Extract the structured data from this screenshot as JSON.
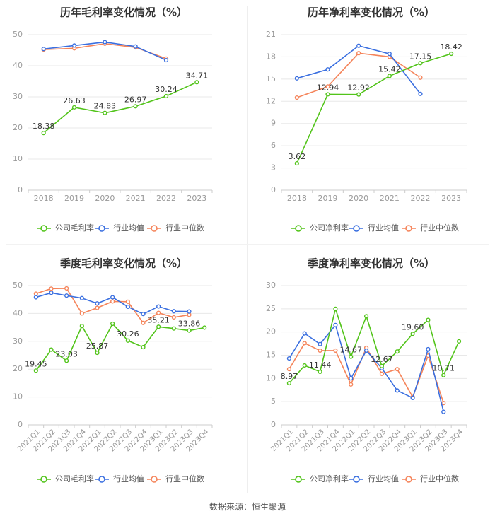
{
  "footer": {
    "source": "数据来源：恒生聚源"
  },
  "colors": {
    "company": "#52c41a",
    "avg": "#3a6fe0",
    "median": "#f5845a",
    "grid": "#e8e8e8",
    "axis": "#999999"
  },
  "chart_data": [
    {
      "id": "annual-gross",
      "type": "line",
      "title": "历年毛利率变化情况（%）",
      "categories": [
        "2018",
        "2019",
        "2020",
        "2021",
        "2022",
        "2023"
      ],
      "ylim": [
        0,
        50
      ],
      "yticks": [
        0,
        10,
        20,
        30,
        40,
        50
      ],
      "series": [
        {
          "name": "公司毛利率",
          "key": "company",
          "values": [
            18.38,
            26.63,
            24.83,
            26.97,
            30.24,
            34.71
          ],
          "labels": [
            "18.38",
            "26.63",
            "24.83",
            "26.97",
            "30.24",
            "34.71"
          ]
        },
        {
          "name": "行业均值",
          "key": "avg",
          "values": [
            45.4,
            46.5,
            47.6,
            46.2,
            41.8,
            null
          ]
        },
        {
          "name": "行业中位数",
          "key": "median",
          "values": [
            45.2,
            45.6,
            47.1,
            45.9,
            42.3,
            null
          ]
        }
      ]
    },
    {
      "id": "annual-net",
      "type": "line",
      "title": "历年净利率变化情况（%）",
      "categories": [
        "2018",
        "2019",
        "2020",
        "2021",
        "2022",
        "2023"
      ],
      "ylim": [
        0,
        21
      ],
      "yticks": [
        0,
        3,
        6,
        9,
        12,
        15,
        18,
        21
      ],
      "series": [
        {
          "name": "公司净利率",
          "key": "company",
          "values": [
            3.62,
            12.94,
            12.92,
            15.42,
            17.15,
            18.42
          ],
          "labels": [
            "3.62",
            "12.94",
            "12.92",
            "15.42",
            "17.15",
            "18.42"
          ]
        },
        {
          "name": "行业均值",
          "key": "avg",
          "values": [
            15.1,
            16.3,
            19.5,
            18.4,
            13.0,
            null
          ]
        },
        {
          "name": "行业中位数",
          "key": "median",
          "values": [
            12.5,
            14.0,
            18.5,
            18.0,
            15.2,
            null
          ]
        }
      ]
    },
    {
      "id": "quarterly-gross",
      "type": "line",
      "title": "季度毛利率变化情况（%）",
      "categories": [
        "2021Q1",
        "2021Q2",
        "2021Q3",
        "2021Q4",
        "2022Q1",
        "2022Q2",
        "2022Q3",
        "2022Q4",
        "2023Q1",
        "2023Q2",
        "2023Q3",
        "2023Q4"
      ],
      "ylim": [
        0,
        50
      ],
      "yticks": [
        0,
        10,
        20,
        30,
        40,
        50
      ],
      "series": [
        {
          "name": "公司毛利率",
          "key": "company",
          "values": [
            19.45,
            27.0,
            23.03,
            35.5,
            25.87,
            36.3,
            30.26,
            27.9,
            35.21,
            34.6,
            33.86,
            34.9
          ],
          "labels": [
            "19.45",
            "",
            "23.03",
            "",
            "25.87",
            "",
            "30.26",
            "",
            "35.21",
            "",
            "33.86",
            ""
          ]
        },
        {
          "name": "行业均值",
          "key": "avg",
          "values": [
            45.8,
            47.4,
            46.4,
            45.5,
            43.6,
            45.8,
            42.4,
            39.8,
            42.5,
            40.8,
            40.7,
            null
          ]
        },
        {
          "name": "行业中位数",
          "key": "median",
          "values": [
            47.1,
            48.9,
            49.0,
            40.0,
            42.0,
            44.3,
            44.2,
            36.6,
            40.2,
            38.6,
            39.5,
            null
          ]
        }
      ]
    },
    {
      "id": "quarterly-net",
      "type": "line",
      "title": "季度净利率变化情况（%）",
      "categories": [
        "2021Q1",
        "2021Q2",
        "2021Q3",
        "2021Q4",
        "2022Q1",
        "2022Q2",
        "2022Q3",
        "2022Q4",
        "2023Q1",
        "2023Q2",
        "2023Q3",
        "2023Q4"
      ],
      "ylim": [
        0,
        30
      ],
      "yticks": [
        0,
        5,
        10,
        15,
        20,
        25,
        30
      ],
      "series": [
        {
          "name": "公司净利率",
          "key": "company",
          "values": [
            8.97,
            12.8,
            11.44,
            25.0,
            14.67,
            23.4,
            12.67,
            15.8,
            19.6,
            22.6,
            10.71,
            18.0
          ],
          "labels": [
            "8.97",
            "",
            "11.44",
            "",
            "14.67",
            "",
            "12.67",
            "",
            "19.60",
            "",
            "10.71",
            ""
          ]
        },
        {
          "name": "行业均值",
          "key": "avg",
          "values": [
            14.3,
            19.7,
            17.4,
            21.5,
            10.0,
            16.0,
            12.2,
            7.4,
            5.8,
            16.3,
            2.8,
            null
          ]
        },
        {
          "name": "行业中位数",
          "key": "median",
          "values": [
            12.0,
            17.6,
            16.0,
            16.0,
            8.7,
            16.6,
            11.0,
            12.0,
            6.0,
            14.9,
            4.7,
            null
          ]
        }
      ]
    }
  ]
}
